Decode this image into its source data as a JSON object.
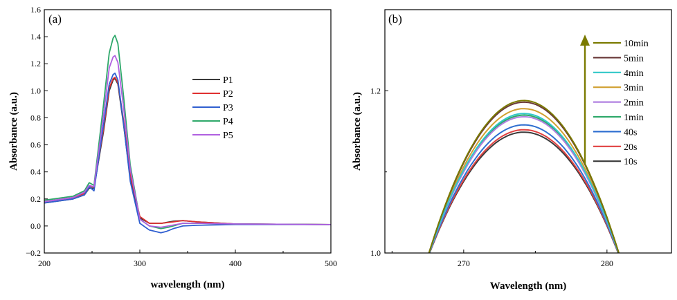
{
  "chart_data": [
    {
      "type": "line",
      "panel_label": "(a)",
      "xlabel": "wavelength (nm)",
      "ylabel": "Absorbance (a.u.)",
      "xlim": [
        200,
        500
      ],
      "ylim": [
        -0.2,
        1.6
      ],
      "xticks": [
        200,
        300,
        400,
        500
      ],
      "yticks": [
        -0.2,
        0.0,
        0.2,
        0.4,
        0.6,
        0.8,
        1.0,
        1.2,
        1.4,
        1.6
      ],
      "ytick_labels": [
        "−0.2",
        "0.0",
        "0.2",
        "0.4",
        "0.6",
        "0.8",
        "1.0",
        "1.2",
        "1.4",
        "1.6"
      ],
      "grid": false,
      "legend_position": "center-right",
      "series": [
        {
          "name": "P1",
          "color": "#3a3a3a",
          "x": [
            200,
            230,
            242,
            247,
            252,
            262,
            268,
            272,
            274,
            277,
            283,
            290,
            300,
            310,
            323,
            335,
            345,
            360,
            400,
            500
          ],
          "y": [
            0.17,
            0.2,
            0.23,
            0.28,
            0.28,
            0.7,
            1.0,
            1.08,
            1.09,
            1.05,
            0.75,
            0.35,
            0.06,
            0.02,
            0.02,
            0.035,
            0.04,
            0.03,
            0.015,
            0.01
          ]
        },
        {
          "name": "P2",
          "color": "#e03030",
          "x": [
            200,
            230,
            242,
            247,
            252,
            262,
            268,
            272,
            274,
            277,
            283,
            290,
            300,
            310,
            323,
            335,
            345,
            360,
            400,
            500
          ],
          "y": [
            0.18,
            0.21,
            0.24,
            0.29,
            0.29,
            0.72,
            1.02,
            1.09,
            1.1,
            1.06,
            0.78,
            0.38,
            0.07,
            0.02,
            0.02,
            0.03,
            0.04,
            0.03,
            0.015,
            0.01
          ]
        },
        {
          "name": "P3",
          "color": "#2f5fd0",
          "x": [
            200,
            230,
            242,
            247,
            252,
            262,
            268,
            272,
            274,
            277,
            283,
            290,
            300,
            310,
            322,
            328,
            335,
            345,
            360,
            400,
            500
          ],
          "y": [
            0.17,
            0.2,
            0.23,
            0.29,
            0.26,
            0.75,
            1.05,
            1.12,
            1.13,
            1.08,
            0.76,
            0.33,
            0.02,
            -0.03,
            -0.05,
            -0.04,
            -0.02,
            0.0,
            0.005,
            0.01,
            0.01
          ]
        },
        {
          "name": "P4",
          "color": "#2ea86a",
          "x": [
            200,
            230,
            242,
            247,
            252,
            262,
            268,
            272,
            274,
            277,
            283,
            290,
            300,
            310,
            322,
            330,
            345,
            360,
            400,
            500
          ],
          "y": [
            0.19,
            0.22,
            0.26,
            0.32,
            0.3,
            0.9,
            1.28,
            1.39,
            1.41,
            1.35,
            0.96,
            0.45,
            0.05,
            0.0,
            -0.02,
            -0.01,
            0.02,
            0.02,
            0.015,
            0.01
          ]
        },
        {
          "name": "P5",
          "color": "#b060e0",
          "x": [
            200,
            230,
            242,
            247,
            252,
            262,
            268,
            272,
            274,
            277,
            283,
            290,
            300,
            310,
            322,
            330,
            345,
            360,
            400,
            500
          ],
          "y": [
            0.18,
            0.21,
            0.25,
            0.3,
            0.29,
            0.82,
            1.17,
            1.25,
            1.26,
            1.21,
            0.88,
            0.42,
            0.05,
            0.0,
            -0.01,
            0.0,
            0.02,
            0.02,
            0.015,
            0.01
          ]
        }
      ]
    },
    {
      "type": "line",
      "panel_label": "(b)",
      "xlabel": "Wavelength (nm)",
      "ylabel": "Absorbance (a.u.)",
      "xlim": [
        264.5,
        284.5
      ],
      "ylim": [
        1.0,
        1.3
      ],
      "xticks": [
        270,
        280
      ],
      "yticks": [
        1.0,
        1.2
      ],
      "ytick_labels": [
        "1.0",
        "1.2"
      ],
      "grid": false,
      "legend_position": "top-right",
      "legend_arrow": {
        "direction": "up",
        "color": "#7a7a00"
      },
      "peak_wavelength": 274.2,
      "series": [
        {
          "name": "10min",
          "color": "#7a7a00",
          "peak": 1.188
        },
        {
          "name": "5min",
          "color": "#6a3a3a",
          "peak": 1.186
        },
        {
          "name": "4min",
          "color": "#30c8c8",
          "peak": 1.172
        },
        {
          "name": "3min",
          "color": "#d0a030",
          "peak": 1.178
        },
        {
          "name": "2min",
          "color": "#b080e0",
          "peak": 1.168
        },
        {
          "name": "1min",
          "color": "#2ea86a",
          "peak": 1.17
        },
        {
          "name": "40s",
          "color": "#2f6fd0",
          "peak": 1.158
        },
        {
          "name": "20s",
          "color": "#e04040",
          "peak": 1.152
        },
        {
          "name": "10s",
          "color": "#3a3a3a",
          "peak": 1.149
        }
      ]
    }
  ]
}
